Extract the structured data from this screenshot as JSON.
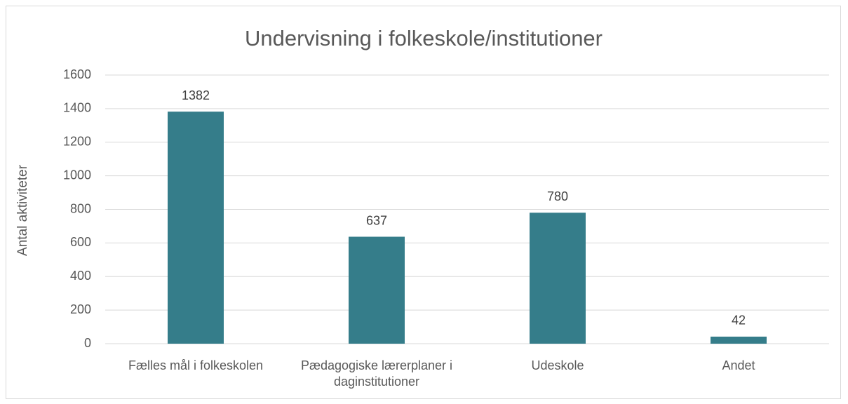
{
  "chart_data": {
    "type": "bar",
    "title": "Undervisning i folkeskole/institutioner",
    "y_label": "Antal aktiviteter",
    "categories": [
      "Fælles mål i folkeskolen",
      "Pædagogiske lærerplaner i daginstitutioner",
      "Udeskole",
      "Andet"
    ],
    "values": [
      1382,
      637,
      780,
      42
    ],
    "color": "#357d8a",
    "ylim": [
      0,
      1600
    ],
    "yticks": [
      0,
      200,
      400,
      600,
      800,
      1000,
      1200,
      1400,
      1600
    ],
    "grid": true
  }
}
